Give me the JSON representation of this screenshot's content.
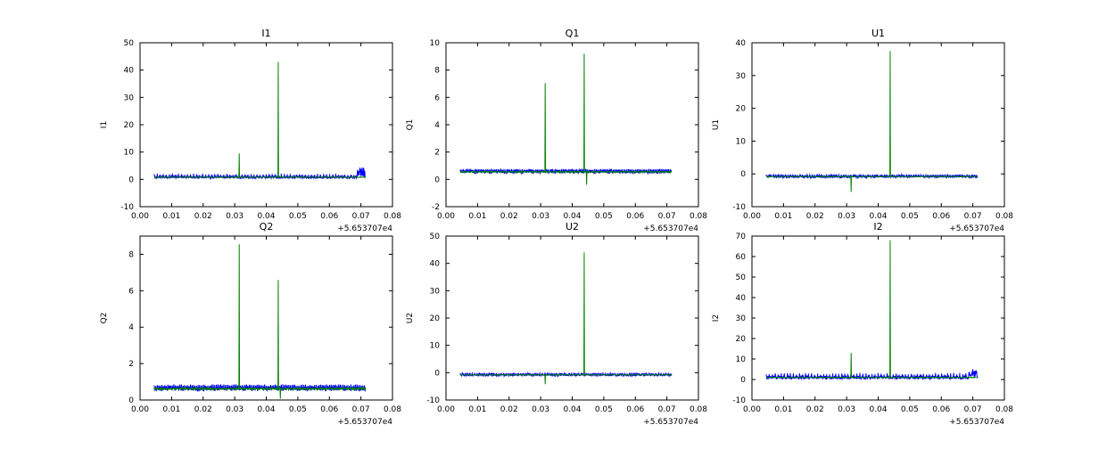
{
  "figure": {
    "background": "#ffffff",
    "axes_color": "#000000",
    "x_offset_label": "+5.653707e4"
  },
  "chart_data": [
    {
      "type": "line",
      "title": "I1",
      "ylabel": "I1",
      "xlabel": "",
      "xlim": [
        0,
        0.08
      ],
      "ylim": [
        -10,
        50
      ],
      "xticks": [
        0,
        0.01,
        0.02,
        0.03,
        0.04,
        0.05,
        0.06,
        0.07,
        0.08
      ],
      "yticks": [
        -10,
        0,
        10,
        20,
        30,
        40,
        50
      ],
      "x_offset_label": "+5.653707e4",
      "x_range": [
        0.0045,
        0.0715
      ],
      "grid": false,
      "legend": "none",
      "series": [
        {
          "name": "blue",
          "color": "#0000ff",
          "baseline": 0.8,
          "noise": 0.45,
          "comb": {
            "every": 10,
            "height": 1.3
          },
          "cluster": {
            "from": 0.0688,
            "to": 0.0713,
            "peak": 3.6
          },
          "spikes": []
        },
        {
          "name": "green",
          "color": "#008000",
          "baseline": 0.8,
          "noise": 0.08,
          "spikes": [
            {
              "x": 0.0314,
              "y": 9.5
            },
            {
              "x": 0.0438,
              "y": 43.0
            }
          ]
        }
      ]
    },
    {
      "type": "line",
      "title": "Q1",
      "ylabel": "Q1",
      "xlabel": "",
      "xlim": [
        0,
        0.08
      ],
      "ylim": [
        -2,
        10
      ],
      "xticks": [
        0,
        0.01,
        0.02,
        0.03,
        0.04,
        0.05,
        0.06,
        0.07,
        0.08
      ],
      "yticks": [
        -2,
        0,
        2,
        4,
        6,
        8,
        10
      ],
      "x_offset_label": "+5.653707e4",
      "x_range": [
        0.0045,
        0.0715
      ],
      "grid": false,
      "legend": "none",
      "series": [
        {
          "name": "blue",
          "color": "#0000ff",
          "baseline": 0.55,
          "noise": 0.12,
          "comb": {
            "every": 5,
            "height": 0.22
          },
          "spikes": []
        },
        {
          "name": "green",
          "color": "#008000",
          "baseline": 0.55,
          "noise": 0.04,
          "spikes": [
            {
              "x": 0.0314,
              "y": 7.05
            },
            {
              "x": 0.0438,
              "y": 9.2
            },
            {
              "x": 0.0446,
              "y": -0.4
            }
          ]
        }
      ]
    },
    {
      "type": "line",
      "title": "U1",
      "ylabel": "U1",
      "xlabel": "",
      "xlim": [
        0,
        0.08
      ],
      "ylim": [
        -10,
        40
      ],
      "xticks": [
        0,
        0.01,
        0.02,
        0.03,
        0.04,
        0.05,
        0.06,
        0.07,
        0.08
      ],
      "yticks": [
        -10,
        0,
        10,
        20,
        30,
        40
      ],
      "x_offset_label": "+5.653707e4",
      "x_range": [
        0.0045,
        0.0715
      ],
      "grid": false,
      "legend": "none",
      "series": [
        {
          "name": "blue",
          "color": "#0000ff",
          "baseline": -0.8,
          "noise": 0.4,
          "comb": {
            "every": 8,
            "height": 0.7
          },
          "spikes": []
        },
        {
          "name": "green",
          "color": "#008000",
          "baseline": -0.8,
          "noise": 0.08,
          "spikes": [
            {
              "x": 0.0314,
              "y": -5.5
            },
            {
              "x": 0.0438,
              "y": 37.5
            }
          ]
        }
      ]
    },
    {
      "type": "line",
      "title": "Q2",
      "ylabel": "Q2",
      "xlabel": "",
      "xlim": [
        0,
        0.08
      ],
      "ylim": [
        0,
        9
      ],
      "xticks": [
        0,
        0.01,
        0.02,
        0.03,
        0.04,
        0.05,
        0.06,
        0.07,
        0.08
      ],
      "yticks": [
        0,
        2,
        4,
        6,
        8
      ],
      "x_offset_label": "+5.653707e4",
      "x_range": [
        0.0045,
        0.0715
      ],
      "grid": false,
      "legend": "none",
      "series": [
        {
          "name": "blue",
          "color": "#0000ff",
          "baseline": 0.62,
          "noise": 0.12,
          "comb": {
            "every": 5,
            "height": 0.24
          },
          "spikes": []
        },
        {
          "name": "green",
          "color": "#008000",
          "baseline": 0.62,
          "noise": 0.05,
          "spikes": [
            {
              "x": 0.0314,
              "y": 8.55
            },
            {
              "x": 0.0438,
              "y": 6.6
            },
            {
              "x": 0.0445,
              "y": 0.07
            }
          ]
        }
      ]
    },
    {
      "type": "line",
      "title": "U2",
      "ylabel": "U2",
      "xlabel": "",
      "xlim": [
        0,
        0.08
      ],
      "ylim": [
        -10,
        50
      ],
      "xticks": [
        0,
        0.01,
        0.02,
        0.03,
        0.04,
        0.05,
        0.06,
        0.07,
        0.08
      ],
      "yticks": [
        -10,
        0,
        10,
        20,
        30,
        40,
        50
      ],
      "x_offset_label": "+5.653707e4",
      "x_range": [
        0.0045,
        0.0715
      ],
      "grid": false,
      "legend": "none",
      "series": [
        {
          "name": "blue",
          "color": "#0000ff",
          "baseline": -0.8,
          "noise": 0.45,
          "comb": {
            "every": 8,
            "height": 0.8
          },
          "spikes": []
        },
        {
          "name": "green",
          "color": "#008000",
          "baseline": -0.8,
          "noise": 0.08,
          "spikes": [
            {
              "x": 0.0314,
              "y": -4.2
            },
            {
              "x": 0.0438,
              "y": 44.0
            }
          ]
        }
      ]
    },
    {
      "type": "line",
      "title": "I2",
      "ylabel": "I2",
      "xlabel": "",
      "xlim": [
        0,
        0.08
      ],
      "ylim": [
        -10,
        70
      ],
      "xticks": [
        0,
        0.01,
        0.02,
        0.03,
        0.04,
        0.05,
        0.06,
        0.07,
        0.08
      ],
      "yticks": [
        -10,
        0,
        10,
        20,
        30,
        40,
        50,
        60,
        70
      ],
      "x_offset_label": "+5.653707e4",
      "x_range": [
        0.0045,
        0.0715
      ],
      "grid": false,
      "legend": "none",
      "series": [
        {
          "name": "blue",
          "color": "#0000ff",
          "baseline": 1.0,
          "noise": 0.8,
          "comb": {
            "every": 10,
            "height": 2.2
          },
          "cluster": {
            "from": 0.0688,
            "to": 0.0713,
            "peak": 3.8
          },
          "spikes": []
        },
        {
          "name": "green",
          "color": "#008000",
          "baseline": 1.0,
          "noise": 0.12,
          "spikes": [
            {
              "x": 0.0314,
              "y": 13.0
            },
            {
              "x": 0.0438,
              "y": 68.0
            }
          ]
        }
      ]
    }
  ]
}
